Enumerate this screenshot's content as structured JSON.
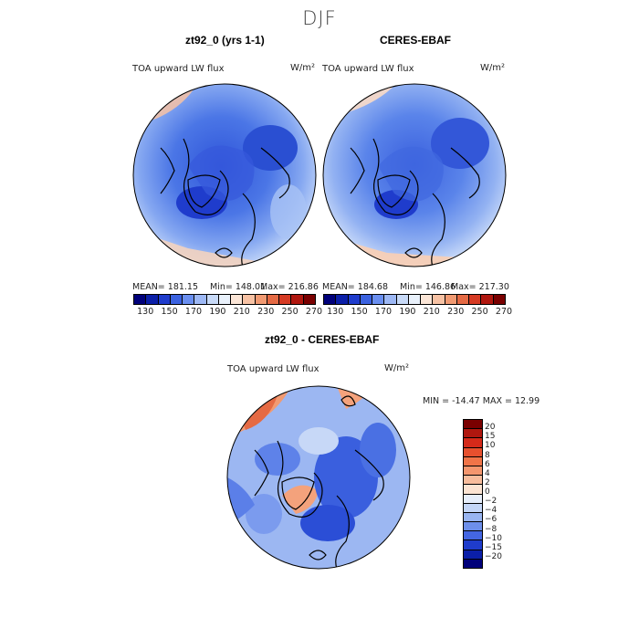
{
  "title": "DJF",
  "panels": [
    {
      "title": "zt92_0 (yrs 1-1)",
      "variable": "TOA upward LW flux",
      "units": "W/m²",
      "stats": {
        "mean": "MEAN= 181.15",
        "min": "Min= 148.01",
        "max": "Max= 216.86"
      }
    },
    {
      "title": "CERES-EBAF",
      "variable": "TOA upward LW flux",
      "units": "W/m²",
      "stats": {
        "mean": "MEAN= 184.68",
        "min": "Min= 146.86",
        "max": "Max= 217.30"
      }
    },
    {
      "title": "zt92_0 - CERES-EBAF",
      "variable": "TOA upward LW flux",
      "units": "W/m²",
      "stats": {
        "minmax": "MIN = -14.47 MAX =  12.99"
      }
    }
  ],
  "colorbar_main": {
    "labels": [
      "130",
      "150",
      "170",
      "190",
      "210",
      "230",
      "250",
      "270"
    ],
    "colors": [
      "#00007a",
      "#0b1fa8",
      "#1f3ccc",
      "#3b62e0",
      "#6a8ff0",
      "#9db8f5",
      "#c8daf8",
      "#e9f1fb",
      "#fbe5d6",
      "#f7c2a4",
      "#f19a72",
      "#e56a44",
      "#d53a23",
      "#b0170f",
      "#7a0000"
    ]
  },
  "colorbar_diff": {
    "labels": [
      "20",
      "15",
      "10",
      "8",
      "6",
      "4",
      "2",
      "0",
      "−2",
      "−4",
      "−6",
      "−8",
      "−10",
      "−15",
      "−20"
    ],
    "colors": [
      "#7a0000",
      "#b0170f",
      "#d52a1a",
      "#e7502e",
      "#f07448",
      "#f4966e",
      "#f7bc9c",
      "#fbe3d2",
      "#e6eefb",
      "#c4d6f7",
      "#99b5f1",
      "#6d8fea",
      "#4466e2",
      "#1f3ccc",
      "#0b1fa8",
      "#00007a"
    ]
  }
}
